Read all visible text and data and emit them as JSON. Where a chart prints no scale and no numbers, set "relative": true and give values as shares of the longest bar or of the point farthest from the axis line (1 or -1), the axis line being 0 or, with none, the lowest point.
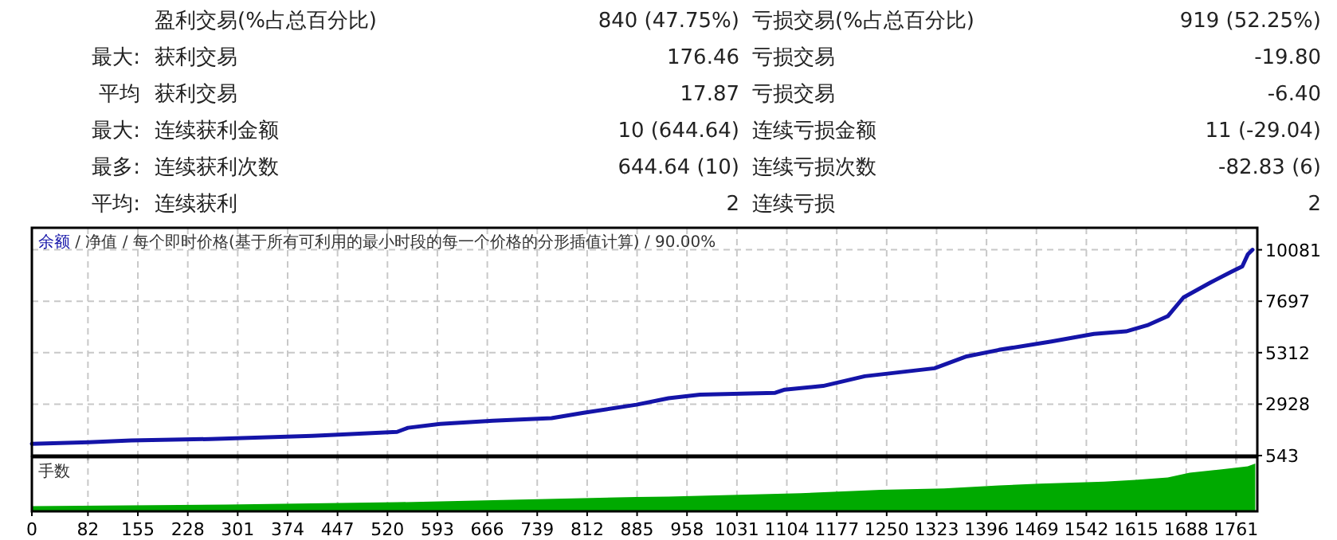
{
  "chart_data": [
    {
      "type": "other",
      "annotations": [
        null,
        "盈利交易(%占总百分比)",
        "840 (47.75%)",
        "亏损交易(%占总百分比)",
        "919 (52.25%)",
        "最大:",
        "获利交易",
        "176.46",
        "亏损交易",
        "-19.80",
        "平均",
        "获利交易",
        "17.87",
        "亏损交易",
        "-6.40",
        "最大:",
        "连续获利金额",
        "10 (644.64)",
        "连续亏损金额",
        "11 (-29.04)",
        "最多:",
        "连续获利次数",
        "644.64 (10)",
        "连续亏损次数",
        "-82.83 (6)",
        "平均:",
        "连续获利",
        "2",
        "连续亏损",
        "2"
      ]
    },
    {
      "type": "line",
      "title": "余额 / 净值 / 每个即时价格(基于所有可利用的最小时段的每一个价格的分形插值计算) / 90.00%",
      "xlim": [
        0,
        1792
      ],
      "ylim": [
        543,
        11100
      ],
      "yticks": [
        543,
        2928,
        5312,
        7697,
        10081
      ],
      "xticks": [
        0,
        82,
        155,
        228,
        301,
        374,
        447,
        520,
        593,
        666,
        739,
        812,
        885,
        958,
        1031,
        1104,
        1177,
        1250,
        1323,
        1396,
        1469,
        1542,
        1615,
        1688,
        1761
      ],
      "grid": true,
      "tick_labels": "y",
      "line_style": "solid",
      "series": [
        {
          "color": "#1414a8",
          "x": [
            0,
            83,
            145,
            261,
            410,
            448,
            534,
            550,
            597,
            674,
            760,
            807,
            884,
            931,
            977,
            1087,
            1101,
            1157,
            1218,
            1320,
            1367,
            1414,
            1491,
            1553,
            1600,
            1631,
            1661,
            1684,
            1724,
            1754,
            1770,
            1778,
            1785
          ],
          "values": [
            1090,
            1160,
            1240,
            1310,
            1460,
            1510,
            1640,
            1830,
            2010,
            2160,
            2280,
            2530,
            2900,
            3200,
            3370,
            3450,
            3600,
            3770,
            4220,
            4590,
            5140,
            5440,
            5830,
            6180,
            6300,
            6580,
            7000,
            7870,
            8570,
            9060,
            9310,
            9860,
            10081
          ]
        }
      ]
    },
    {
      "type": "area",
      "title": "手数",
      "relative": true,
      "xlim": [
        0,
        1792
      ],
      "xticks": [
        0,
        82,
        155,
        228,
        301,
        374,
        447,
        520,
        593,
        666,
        739,
        812,
        885,
        958,
        1031,
        1104,
        1177,
        1250,
        1323,
        1396,
        1469,
        1542,
        1615,
        1688,
        1761
      ],
      "grid": "x",
      "tick_labels": "x",
      "series": [
        {
          "color": "#00aa00",
          "x": [
            0,
            285,
            534,
            884,
            931,
            1124,
            1241,
            1334,
            1414,
            1474,
            1568,
            1614,
            1661,
            1693,
            1740,
            1778,
            1789
          ],
          "values": [
            0.11,
            0.14,
            0.19,
            0.3,
            0.31,
            0.38,
            0.45,
            0.48,
            0.54,
            0.58,
            0.62,
            0.66,
            0.71,
            0.81,
            0.88,
            0.94,
            1
          ]
        }
      ]
    }
  ]
}
